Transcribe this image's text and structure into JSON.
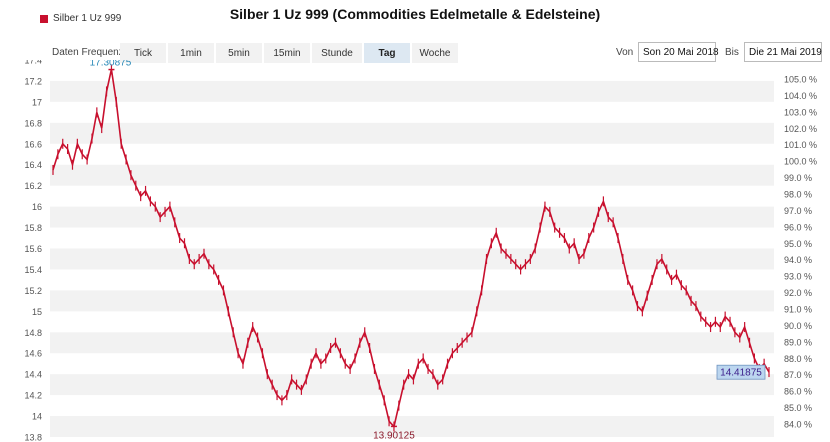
{
  "title": "Silber 1 Uz 999 (Commodities Edelmetalle & Edelsteine)",
  "legend": {
    "label": "Silber 1 Uz 999",
    "color": "#c8102e"
  },
  "toolbar": {
    "freq_label": "Daten Frequenz",
    "buttons": [
      "Tick",
      "1min",
      "5min",
      "15min",
      "Stunde",
      "Tag",
      "Woche"
    ],
    "active": "Tag",
    "from_label": "Von",
    "from_value": "Son 20 Mai 2018",
    "to_label": "Bis",
    "to_value": "Die 21 Mai 2019"
  },
  "colors": {
    "series": "#c8102e",
    "band": "#f2f2f2",
    "max_label": "#2a8ab8",
    "min_label": "#8b1a2b",
    "last_bg": "#bcd6ef",
    "last_text": "#3a1d8a"
  },
  "chart_data": {
    "type": "line",
    "title": "Silber 1 Uz 999 (Commodities Edelmetalle & Edelsteine)",
    "xlabel": "",
    "ylabel": "",
    "x_range": [
      "2018-05-20",
      "2019-05-21"
    ],
    "ylim": [
      13.8,
      17.4
    ],
    "y_ticks": [
      13.8,
      14,
      14.2,
      14.4,
      14.6,
      14.8,
      15,
      15.2,
      15.4,
      15.6,
      15.8,
      16,
      16.2,
      16.4,
      16.6,
      16.8,
      17,
      17.2,
      17.4
    ],
    "y2_ticks": [
      "84.0 %",
      "85.0 %",
      "86.0 %",
      "87.0 %",
      "88.0 %",
      "89.0 %",
      "90.0 %",
      "91.0 %",
      "92.0 %",
      "93.0 %",
      "94.0 %",
      "95.0 %",
      "96.0 %",
      "97.0 %",
      "98.0 %",
      "99.0 %",
      "100.0 %",
      "101.0 %",
      "102.0 %",
      "103.0 %",
      "104.0 %",
      "105.0 %"
    ],
    "y2_range": [
      84,
      105
    ],
    "grid": "alternating-bands",
    "series": [
      {
        "name": "Silber 1 Uz 999",
        "values": [
          16.35,
          16.5,
          16.6,
          16.55,
          16.4,
          16.6,
          16.5,
          16.45,
          16.65,
          16.9,
          16.75,
          17.1,
          17.31,
          17.0,
          16.6,
          16.45,
          16.3,
          16.2,
          16.1,
          16.15,
          16.05,
          16.0,
          15.9,
          15.95,
          16.0,
          15.85,
          15.7,
          15.65,
          15.5,
          15.45,
          15.5,
          15.55,
          15.45,
          15.4,
          15.3,
          15.2,
          15.0,
          14.8,
          14.6,
          14.5,
          14.7,
          14.85,
          14.75,
          14.6,
          14.4,
          14.3,
          14.2,
          14.15,
          14.2,
          14.35,
          14.3,
          14.25,
          14.35,
          14.5,
          14.6,
          14.5,
          14.55,
          14.65,
          14.7,
          14.6,
          14.5,
          14.45,
          14.55,
          14.7,
          14.8,
          14.65,
          14.45,
          14.3,
          14.15,
          13.95,
          13.9,
          14.1,
          14.3,
          14.4,
          14.35,
          14.5,
          14.55,
          14.45,
          14.4,
          14.3,
          14.35,
          14.5,
          14.6,
          14.65,
          14.7,
          14.75,
          14.8,
          15.0,
          15.2,
          15.5,
          15.65,
          15.75,
          15.6,
          15.55,
          15.5,
          15.45,
          15.4,
          15.45,
          15.5,
          15.6,
          15.8,
          16.0,
          15.95,
          15.8,
          15.75,
          15.7,
          15.6,
          15.65,
          15.5,
          15.55,
          15.7,
          15.8,
          15.95,
          16.05,
          15.9,
          15.85,
          15.7,
          15.5,
          15.3,
          15.2,
          15.05,
          15.0,
          15.15,
          15.3,
          15.45,
          15.5,
          15.4,
          15.3,
          15.35,
          15.25,
          15.2,
          15.1,
          15.05,
          14.95,
          14.9,
          14.85,
          14.9,
          14.85,
          14.95,
          14.9,
          14.8,
          14.75,
          14.85,
          14.7,
          14.55,
          14.45,
          14.5,
          14.42
        ]
      }
    ],
    "annotations": [
      {
        "kind": "max",
        "x_index": 12,
        "value": 17.30875,
        "label": "17.30875"
      },
      {
        "kind": "min",
        "x_index": 70,
        "value": 13.90125,
        "label": "13.90125"
      },
      {
        "kind": "last",
        "x_index": 149,
        "value": 14.41875,
        "label": "14.41875"
      }
    ]
  }
}
